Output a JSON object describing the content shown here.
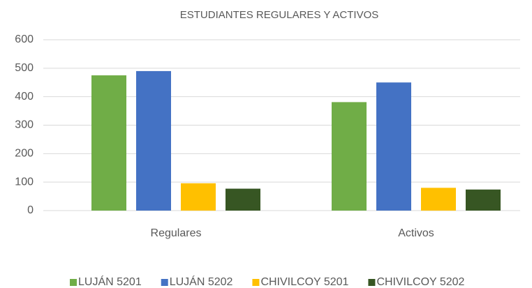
{
  "chart_data": {
    "type": "bar",
    "title": "ESTUDIANTES REGULARES Y ACTIVOS",
    "categories": [
      "Regulares",
      "Activos"
    ],
    "series": [
      {
        "name": "LUJÁN 5201",
        "color": "#70ad47",
        "values": [
          475,
          381
        ]
      },
      {
        "name": "LUJÁN 5202",
        "color": "#4472c4",
        "values": [
          490,
          450
        ]
      },
      {
        "name": "CHIVILCOY 5201",
        "color": "#ffc000",
        "values": [
          96,
          80
        ]
      },
      {
        "name": "CHIVILCOY 5202",
        "color": "#375623",
        "values": [
          77,
          74
        ]
      }
    ],
    "ylim": [
      0,
      600
    ],
    "yticks": [
      0,
      100,
      200,
      300,
      400,
      500,
      600
    ],
    "grid": true,
    "legend": "bottom"
  }
}
